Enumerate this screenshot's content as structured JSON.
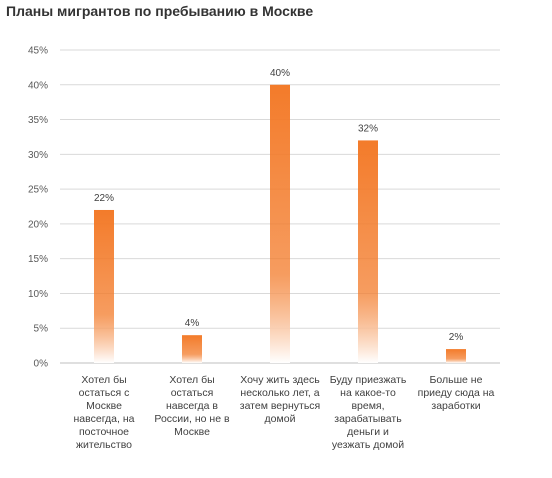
{
  "chart_data": {
    "type": "bar",
    "title": "Планы мигрантов по пребыванию в Москве",
    "xlabel": "",
    "ylabel": "",
    "ylim": [
      0,
      45
    ],
    "yticks": [
      "0%",
      "5%",
      "10%",
      "15%",
      "20%",
      "25%",
      "30%",
      "35%",
      "40%",
      "45%"
    ],
    "ytick_values": [
      0,
      5,
      10,
      15,
      20,
      25,
      30,
      35,
      40,
      45
    ],
    "value_suffix": "%",
    "grid": true,
    "legend": "none",
    "categories": [
      [
        "Хотел бы",
        "остаться с",
        "Москве",
        "навсегда, на",
        "посточное",
        "жительство"
      ],
      [
        "Хотел бы",
        "остаться",
        "навсегда в",
        "России, но не в",
        "Москве"
      ],
      [
        "Хочу жить здесь",
        "несколько лет, а",
        "затем вернуться",
        "домой"
      ],
      [
        "Буду приезжать",
        "на какое-то",
        "время,",
        "зарабатывать",
        "деньги и",
        "уезжать домой"
      ],
      [
        "Больше не",
        "приеду сюда на",
        "заработки"
      ]
    ],
    "values": [
      22,
      4,
      40,
      32,
      2
    ],
    "data_labels": [
      "22%",
      "4%",
      "40%",
      "32%",
      "2%"
    ],
    "colors": {
      "bar_top": "#f37b2a",
      "bar_bottom": "#ffffff",
      "grid": "#d9d9d9"
    }
  }
}
